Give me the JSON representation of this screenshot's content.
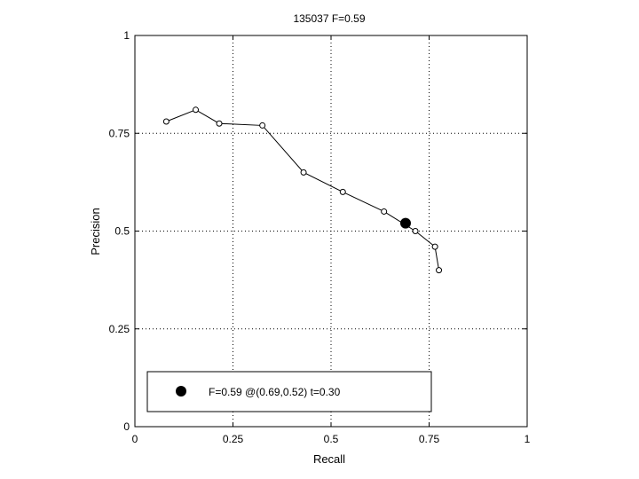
{
  "chart_data": {
    "type": "line",
    "title": "135037 F=0.59",
    "xlabel": "Recall",
    "ylabel": "Precision",
    "xlim": [
      0,
      1
    ],
    "ylim": [
      0,
      1
    ],
    "grid": true,
    "x_ticks": [
      "0",
      "0.25",
      "0.5",
      "0.75",
      "1"
    ],
    "y_ticks": [
      "0",
      "0.25",
      "0.5",
      "0.75",
      "1"
    ],
    "series": [
      {
        "x": [
          0.08,
          0.155,
          0.215,
          0.325,
          0.43,
          0.53,
          0.635,
          0.715,
          0.765,
          0.775
        ],
        "y": [
          0.78,
          0.81,
          0.775,
          0.77,
          0.65,
          0.6,
          0.55,
          0.5,
          0.46,
          0.4
        ]
      }
    ],
    "highlight_point": {
      "x": 0.69,
      "y": 0.52
    },
    "legend": {
      "position": "bottom-left",
      "text": "F=0.59 @(0.69,0.52) t=0.30"
    },
    "colors": {
      "line": "#000000",
      "grid": "#000000",
      "background": "#ffffff"
    }
  }
}
